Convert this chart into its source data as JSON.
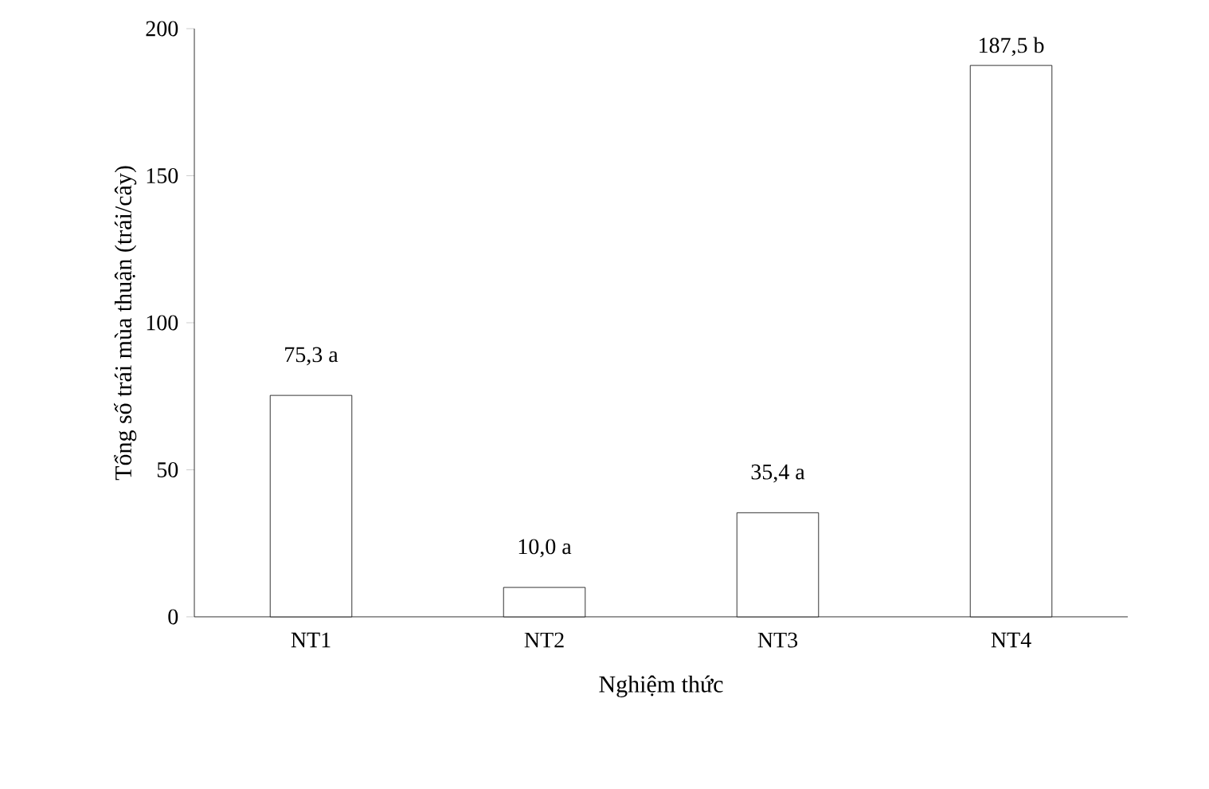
{
  "chart_data": {
    "type": "bar",
    "xlabel": "Nghiệm thức",
    "ylabel": "Tổng số trái mùa thuận (trái/cây)",
    "categories": [
      "NT1",
      "NT2",
      "NT3",
      "NT4"
    ],
    "values": [
      75.3,
      10.0,
      35.4,
      187.5
    ],
    "value_labels": [
      "75,3 a",
      "10,0 a",
      "35,4 a",
      "187,5 b"
    ],
    "color": "#000000",
    "ylim": [
      0,
      200
    ],
    "yticks": [
      0,
      50,
      100,
      150,
      200
    ]
  }
}
